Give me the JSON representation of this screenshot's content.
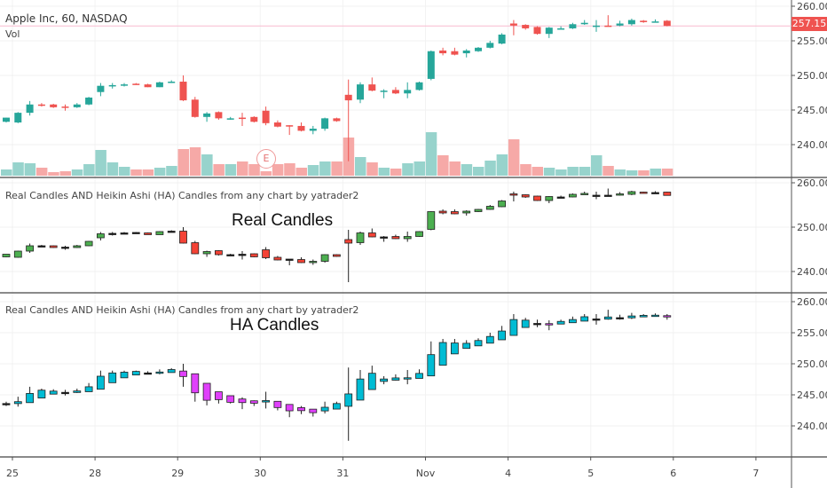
{
  "header": {
    "symbol_title": "Apple Inc, 60, NASDAQ",
    "volume_label": "Vol"
  },
  "indicator": {
    "title": "Real Candles AND Heikin Ashi (HA) Candles from any chart by yatrader2",
    "real_label": "Real Candles",
    "ha_label": "HA Candles"
  },
  "last_price": "257.15",
  "earnings_marker": "E",
  "colors": {
    "up": "#26a69a",
    "down": "#ef5350",
    "real_up": "#4caf50",
    "real_down": "#f44336",
    "ha_up": "#00bcd4",
    "ha_down": "#e040fb",
    "last_price": "#ef5350"
  },
  "chart_data": [
    {
      "type": "candlestick",
      "title": "Apple Inc, 60, NASDAQ",
      "ylim": [
        235,
        261
      ],
      "yticks": [
        "260.00",
        "255.00",
        "250.00",
        "245.00",
        "240.00"
      ],
      "xticks": [
        "25",
        "28",
        "29",
        "30",
        "31",
        "Nov",
        "4",
        "5",
        "6",
        "7"
      ],
      "fields": [
        "open",
        "high",
        "low",
        "close",
        "volume"
      ],
      "ohlcv": [
        [
          243.3,
          243.9,
          243.2,
          243.9,
          7
        ],
        [
          243.2,
          244.7,
          243.1,
          244.6,
          15
        ],
        [
          244.6,
          246.3,
          244.2,
          245.8,
          14
        ],
        [
          245.8,
          246.0,
          245.5,
          245.7,
          9
        ],
        [
          245.8,
          245.9,
          245.3,
          245.4,
          4
        ],
        [
          245.5,
          245.8,
          244.9,
          245.4,
          5
        ],
        [
          245.4,
          246.0,
          245.3,
          245.8,
          7
        ],
        [
          245.8,
          246.9,
          245.7,
          246.8,
          13
        ],
        [
          247.6,
          248.9,
          247.0,
          248.5,
          29
        ],
        [
          248.5,
          248.9,
          248.1,
          248.6,
          15
        ],
        [
          248.6,
          248.9,
          248.4,
          248.7,
          10
        ],
        [
          248.8,
          248.9,
          248.7,
          248.7,
          7
        ],
        [
          248.7,
          248.8,
          248.3,
          248.3,
          7
        ],
        [
          248.3,
          249.1,
          248.3,
          249.0,
          9
        ],
        [
          249.0,
          249.3,
          248.9,
          249.1,
          11
        ],
        [
          249.1,
          250.0,
          246.3,
          246.4,
          30
        ],
        [
          246.5,
          246.9,
          243.9,
          244.0,
          32
        ],
        [
          244.0,
          244.7,
          243.3,
          244.5,
          24
        ],
        [
          244.7,
          244.8,
          243.6,
          243.8,
          13
        ],
        [
          243.8,
          244.0,
          243.6,
          243.8,
          13
        ],
        [
          243.9,
          244.6,
          242.7,
          243.8,
          16
        ],
        [
          244.0,
          244.1,
          243.2,
          243.3,
          13
        ],
        [
          244.9,
          245.5,
          242.8,
          243.1,
          5
        ],
        [
          243.2,
          243.5,
          242.5,
          242.6,
          13
        ],
        [
          242.8,
          242.8,
          241.4,
          242.7,
          14
        ],
        [
          242.7,
          243.2,
          241.9,
          242.0,
          9
        ],
        [
          242.0,
          242.7,
          241.5,
          242.3,
          12
        ],
        [
          242.3,
          243.9,
          242.0,
          243.8,
          16
        ],
        [
          243.8,
          243.9,
          243.3,
          243.4,
          16
        ],
        [
          247.2,
          249.4,
          237.6,
          246.4,
          43
        ],
        [
          246.5,
          249.0,
          246.0,
          248.7,
          21
        ],
        [
          248.7,
          249.7,
          247.7,
          247.8,
          15
        ],
        [
          247.7,
          248.0,
          246.7,
          247.8,
          9
        ],
        [
          247.9,
          248.3,
          247.3,
          247.4,
          8
        ],
        [
          247.4,
          249.0,
          246.7,
          247.9,
          14
        ],
        [
          247.9,
          249.1,
          247.8,
          249.0,
          16
        ],
        [
          249.5,
          253.6,
          249.3,
          253.5,
          49
        ],
        [
          253.6,
          254.0,
          252.9,
          253.2,
          23
        ],
        [
          253.5,
          254.0,
          252.9,
          253.0,
          16
        ],
        [
          253.2,
          253.8,
          252.6,
          253.6,
          13
        ],
        [
          253.5,
          254.1,
          253.4,
          254.0,
          10
        ],
        [
          254.0,
          255.0,
          253.9,
          254.7,
          17
        ],
        [
          254.6,
          256.1,
          254.5,
          255.9,
          24
        ],
        [
          257.5,
          258.0,
          255.8,
          257.2,
          41
        ],
        [
          257.3,
          257.4,
          256.6,
          256.8,
          13
        ],
        [
          257.0,
          257.1,
          255.9,
          256.0,
          10
        ],
        [
          256.0,
          257.0,
          255.4,
          256.9,
          9
        ],
        [
          256.7,
          257.1,
          256.7,
          256.8,
          7
        ],
        [
          256.8,
          257.6,
          256.7,
          257.4,
          10
        ],
        [
          257.4,
          258.0,
          257.3,
          257.6,
          10
        ],
        [
          257.1,
          258.0,
          256.3,
          257.2,
          23
        ],
        [
          257.2,
          258.7,
          257.1,
          257.15,
          11
        ],
        [
          257.2,
          257.9,
          257.1,
          257.5,
          7
        ],
        [
          257.4,
          258.2,
          257.2,
          258.0,
          6
        ],
        [
          257.9,
          258.0,
          257.6,
          257.7,
          6
        ],
        [
          257.7,
          258.1,
          257.7,
          257.8,
          8
        ],
        [
          257.9,
          258.0,
          257.1,
          257.15,
          8
        ]
      ]
    },
    {
      "type": "candlestick",
      "title": "Real Candles",
      "ylim": [
        236,
        261
      ],
      "yticks": [
        "260.00",
        "250.00",
        "240.00"
      ]
    },
    {
      "type": "candlestick",
      "title": "HA Candles",
      "ylim": [
        235,
        261
      ],
      "yticks": [
        "260.00",
        "255.00",
        "250.00",
        "245.00",
        "240.00"
      ]
    }
  ]
}
